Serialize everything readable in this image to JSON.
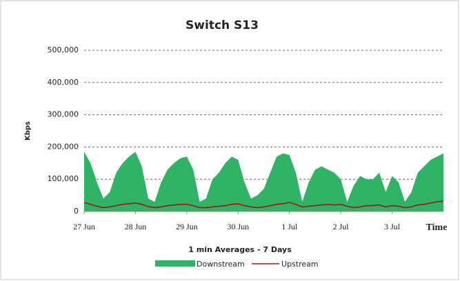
{
  "chart_data": {
    "type": "area",
    "title": "Switch S13",
    "y_label": "Kbps",
    "x_label": "1 min Averages - 7 Days",
    "x_unit_label": "Time",
    "x": [
      0,
      0.125,
      0.25,
      0.375,
      0.5,
      0.625,
      0.75,
      0.875,
      1,
      1.125,
      1.25,
      1.375,
      1.5,
      1.625,
      1.75,
      1.875,
      2,
      2.125,
      2.25,
      2.375,
      2.5,
      2.625,
      2.75,
      2.875,
      3,
      3.125,
      3.25,
      3.375,
      3.5,
      3.625,
      3.75,
      3.875,
      4,
      4.125,
      4.25,
      4.375,
      4.5,
      4.625,
      4.75,
      4.875,
      5,
      5.125,
      5.25,
      5.375,
      5.5,
      5.625,
      5.75,
      5.875,
      6,
      6.125,
      6.25,
      6.375,
      6.5,
      6.625,
      6.75,
      6.875,
      7
    ],
    "series": [
      {
        "name": "Downstream",
        "color": "#2fb466",
        "values": [
          185000,
          150000,
          90000,
          40000,
          60000,
          120000,
          150000,
          170000,
          185000,
          140000,
          40000,
          30000,
          90000,
          130000,
          150000,
          165000,
          170000,
          130000,
          30000,
          40000,
          100000,
          120000,
          150000,
          170000,
          160000,
          90000,
          40000,
          50000,
          70000,
          120000,
          170000,
          180000,
          175000,
          120000,
          30000,
          90000,
          130000,
          140000,
          130000,
          120000,
          100000,
          30000,
          80000,
          110000,
          100000,
          100000,
          120000,
          60000,
          110000,
          90000,
          30000,
          60000,
          120000,
          140000,
          160000,
          170000,
          180000
        ]
      },
      {
        "name": "Upstream",
        "color": "#a3140f",
        "values": [
          28000,
          22000,
          16000,
          12000,
          14000,
          18000,
          22000,
          24000,
          26000,
          22000,
          15000,
          12000,
          14000,
          18000,
          20000,
          22000,
          22000,
          18000,
          12000,
          12000,
          14000,
          16000,
          18000,
          22000,
          24000,
          18000,
          14000,
          12000,
          14000,
          18000,
          22000,
          24000,
          28000,
          22000,
          14000,
          16000,
          18000,
          20000,
          22000,
          20000,
          22000,
          16000,
          12000,
          14000,
          18000,
          18000,
          20000,
          14000,
          18000,
          16000,
          12000,
          14000,
          20000,
          22000,
          26000,
          30000,
          32000
        ]
      }
    ],
    "xlim": [
      0,
      7
    ],
    "xticks": [
      {
        "value": 0,
        "label": "27 Jun"
      },
      {
        "value": 1,
        "label": "28 Jun"
      },
      {
        "value": 2,
        "label": "29 Jun"
      },
      {
        "value": 3,
        "label": "30 Jun"
      },
      {
        "value": 4,
        "label": "1 Jul"
      },
      {
        "value": 5,
        "label": "2 Jul"
      },
      {
        "value": 6,
        "label": "3 Jul"
      }
    ],
    "ylim": [
      0,
      500000
    ],
    "yticks": [
      0,
      {
        "value": 100000,
        "label": "100,000"
      },
      {
        "value": 200000,
        "label": "200,000"
      },
      {
        "value": 300000,
        "label": "300,000"
      },
      {
        "value": 400000,
        "label": "400,000"
      },
      {
        "value": 500000,
        "label": "500,000"
      }
    ],
    "grid": true,
    "legend": "bottom"
  }
}
